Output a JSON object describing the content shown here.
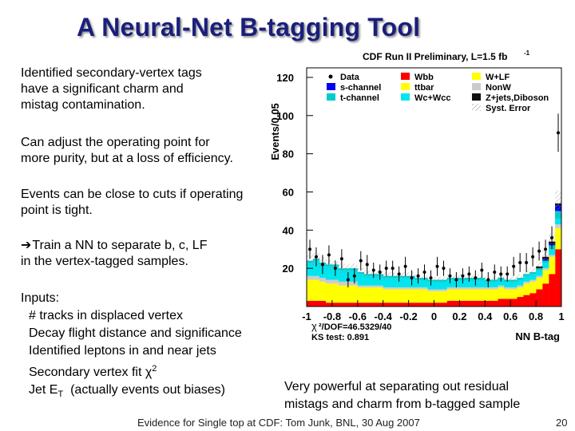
{
  "slide": {
    "title": "A Neural-Net B-tagging Tool",
    "paragraphs": [
      "Identified secondary-vertex tags\nhave a significant charm and\nmistag contamination.",
      "Can adjust the operating point for\nmore purity, but at a loss of efficiency.",
      "Events can be close to cuts if operating\npoint is tight.",
      "Train a NN to separate b, c, LF\nin the vertex-tagged samples."
    ],
    "arrow_glyph": "➔",
    "inputs_header": "Inputs:",
    "inputs": [
      "# tracks in displaced vertex",
      "Decay flight distance and significance",
      "Identified leptons in and near jets",
      "Secondary vertex fit χ",
      "Jet E",
      "T",
      "(actually events out biases)"
    ],
    "chi_superscript": "2",
    "caption": "Very powerful at separating out residual\nmistags and charm from b-tagged sample",
    "footer": "Evidence for Single top at CDF: Tom Junk, BNL, 30 Aug 2007",
    "page_number": "20"
  },
  "chart_data": {
    "type": "bar",
    "title": "CDF Run II Preliminary, L=1.5 fb",
    "title_superscript": "-1",
    "ylabel": "Events/0.05",
    "xlabel": "NN B-tag",
    "xlim": [
      -1,
      1
    ],
    "ylim": [
      0,
      125
    ],
    "yticks": [
      20,
      40,
      60,
      80,
      100,
      120
    ],
    "xticks": [
      "-1",
      "-0.8",
      "-0.6",
      "-0.4",
      "-0.2",
      "0",
      "0.2",
      "0.4",
      "0.6",
      "0.8",
      "1"
    ],
    "chi2_label": "χ",
    "chi2_rest": "²/DOF=46.5329/40",
    "ks_label": "KS test: 0.891",
    "bin_centers": [
      -0.975,
      -0.925,
      -0.875,
      -0.825,
      -0.775,
      -0.725,
      -0.675,
      -0.625,
      -0.575,
      -0.525,
      -0.475,
      -0.425,
      -0.375,
      -0.325,
      -0.275,
      -0.225,
      -0.175,
      -0.125,
      -0.075,
      -0.025,
      0.025,
      0.075,
      0.125,
      0.175,
      0.225,
      0.275,
      0.325,
      0.375,
      0.425,
      0.475,
      0.525,
      0.575,
      0.625,
      0.675,
      0.725,
      0.775,
      0.825,
      0.875,
      0.925,
      0.975
    ],
    "series": [
      {
        "name": "Wbb",
        "color": "#ff0000",
        "values": [
          3,
          3,
          3,
          2,
          2,
          2,
          2,
          2,
          2,
          2,
          2,
          2,
          2,
          2,
          2,
          2,
          2,
          2,
          2,
          2,
          2,
          2,
          3,
          3,
          3,
          3,
          3,
          3,
          3,
          3,
          4,
          4,
          4,
          5,
          6,
          7,
          9,
          12,
          17,
          30
        ]
      },
      {
        "name": "ttbar",
        "color": "#ffff00",
        "values": [
          3,
          3,
          3,
          3,
          3,
          3,
          3,
          3,
          3,
          3,
          3,
          3,
          3,
          3,
          3,
          3,
          3,
          3,
          3,
          3,
          3,
          3,
          3,
          3,
          3,
          3,
          3,
          3,
          3,
          3,
          3,
          3,
          3,
          3,
          4,
          4,
          4,
          5,
          7,
          9
        ]
      },
      {
        "name": "W+LF",
        "color": "#ffff00",
        "values": [
          8,
          8,
          7,
          7,
          7,
          6,
          6,
          6,
          5,
          5,
          5,
          5,
          4,
          4,
          4,
          4,
          4,
          4,
          4,
          3,
          3,
          3,
          3,
          3,
          3,
          3,
          3,
          3,
          3,
          3,
          3,
          2,
          2,
          2,
          2,
          2,
          2,
          2,
          2,
          2
        ]
      },
      {
        "name": "Non W",
        "color": "#cccccc",
        "values": [
          2,
          2,
          2,
          2,
          2,
          2,
          2,
          2,
          1,
          1,
          1,
          1,
          1,
          1,
          1,
          1,
          1,
          1,
          1,
          1,
          1,
          1,
          1,
          1,
          1,
          1,
          1,
          1,
          1,
          1,
          1,
          1,
          1,
          1,
          1,
          1,
          1,
          1,
          1,
          2
        ]
      },
      {
        "name": "Wc+Wcc",
        "color": "#00e5ee",
        "values": [
          7,
          8,
          7,
          7,
          7,
          6,
          6,
          6,
          6,
          5,
          5,
          5,
          5,
          5,
          5,
          5,
          5,
          4,
          4,
          4,
          4,
          4,
          4,
          4,
          4,
          4,
          4,
          4,
          3,
          3,
          3,
          3,
          3,
          3,
          3,
          3,
          3,
          3,
          3,
          3
        ]
      },
      {
        "name": "t-channel",
        "color": "#00cccc",
        "values": [
          1,
          1,
          1,
          1,
          1,
          1,
          1,
          1,
          1,
          1,
          1,
          1,
          1,
          1,
          1,
          1,
          1,
          1,
          1,
          1,
          1,
          1,
          1,
          1,
          1,
          1,
          1,
          1,
          1,
          1,
          1,
          1,
          1,
          1,
          1,
          1,
          1,
          1,
          2,
          4
        ]
      },
      {
        "name": "s-channel",
        "color": "#0000ee",
        "values": [
          0,
          0,
          0,
          0,
          0,
          0,
          0,
          0,
          0,
          0,
          0,
          0,
          0,
          0,
          0,
          0,
          0,
          0,
          0,
          0,
          0,
          0,
          0,
          0,
          0,
          0,
          0,
          0,
          0,
          0,
          0,
          0,
          0,
          0,
          0,
          0,
          0,
          1,
          1,
          3
        ]
      },
      {
        "name": "Z+jets,Diboson",
        "color": "#111111",
        "values": [
          0,
          0,
          0,
          0,
          0,
          0,
          0,
          0,
          0,
          0,
          0,
          0,
          0,
          0,
          0,
          0,
          0,
          0,
          0,
          0,
          0,
          0,
          0,
          0,
          0,
          0,
          0,
          0,
          0,
          0,
          0,
          0,
          0,
          0,
          0,
          0,
          1,
          1,
          1,
          1
        ]
      }
    ],
    "data_values": [
      30,
      26,
      22,
      27,
      20,
      25,
      14,
      16,
      24,
      22,
      19,
      18,
      20,
      20,
      17,
      21,
      15,
      16,
      18,
      15,
      21,
      20,
      16,
      14,
      16,
      17,
      15,
      19,
      14,
      18,
      17,
      17,
      21,
      23,
      23,
      26,
      29,
      30,
      36,
      91
    ],
    "data_errors": [
      5,
      5,
      5,
      5,
      4,
      5,
      4,
      4,
      5,
      5,
      4,
      4,
      4,
      4,
      4,
      5,
      4,
      4,
      4,
      4,
      5,
      4,
      4,
      4,
      4,
      4,
      4,
      4,
      4,
      4,
      4,
      4,
      5,
      5,
      5,
      5,
      5,
      5,
      6,
      10
    ],
    "legend": [
      {
        "label": "Data",
        "kind": "marker",
        "color": "#000000"
      },
      {
        "label": "Wbb",
        "kind": "box",
        "color": "#ff0000"
      },
      {
        "label": "W+LF",
        "kind": "box",
        "color": "#ffff00"
      },
      {
        "label": "s-channel",
        "kind": "box",
        "color": "#0000ee"
      },
      {
        "label": "ttbar",
        "kind": "box",
        "color": "#ffff00"
      },
      {
        "label": "NonW",
        "kind": "box",
        "color": "#cccccc"
      },
      {
        "label": "t-channel",
        "kind": "box",
        "color": "#00cccc"
      },
      {
        "label": "Wc+Wcc",
        "kind": "box",
        "color": "#00e5ee"
      },
      {
        "label": "Z+jets,Diboson",
        "kind": "box",
        "color": "#111111"
      },
      {
        "label": "Syst. Error",
        "kind": "hatch",
        "color": "#999999"
      }
    ],
    "legend_position": "top"
  }
}
